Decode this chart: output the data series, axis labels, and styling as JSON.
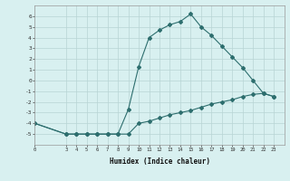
{
  "x_upper": [
    0,
    3,
    4,
    5,
    6,
    7,
    8,
    9,
    10,
    11,
    12,
    13,
    14,
    15,
    16,
    17,
    18,
    19,
    20,
    21,
    22,
    23
  ],
  "y_upper": [
    -4,
    -5,
    -5,
    -5,
    -5,
    -5,
    -5,
    -2.7,
    1.3,
    4,
    4.7,
    5.2,
    5.5,
    6.2,
    5,
    4.2,
    3.2,
    2.2,
    1.2,
    0,
    -1.2,
    -1.5
  ],
  "x_lower": [
    0,
    3,
    4,
    5,
    6,
    7,
    8,
    9,
    10,
    11,
    12,
    13,
    14,
    15,
    16,
    17,
    18,
    19,
    20,
    21,
    22,
    23
  ],
  "y_lower": [
    -4,
    -5,
    -5,
    -5,
    -5,
    -5,
    -5,
    -5,
    -4,
    -3.8,
    -3.5,
    -3.2,
    -3,
    -2.8,
    -2.5,
    -2.2,
    -2,
    -1.8,
    -1.5,
    -1.3,
    -1.2,
    -1.5
  ],
  "line_color": "#2d6e6e",
  "bg_color": "#d8f0f0",
  "grid_color": "#b8d4d4",
  "xlabel": "Humidex (Indice chaleur)",
  "ylim": [
    -6,
    7
  ],
  "xlim": [
    0,
    24
  ],
  "xticks": [
    0,
    3,
    4,
    5,
    6,
    7,
    8,
    9,
    10,
    11,
    12,
    13,
    14,
    15,
    16,
    17,
    18,
    19,
    20,
    21,
    22,
    23
  ],
  "yticks": [
    -5,
    -4,
    -3,
    -2,
    -1,
    0,
    1,
    2,
    3,
    4,
    5,
    6
  ]
}
